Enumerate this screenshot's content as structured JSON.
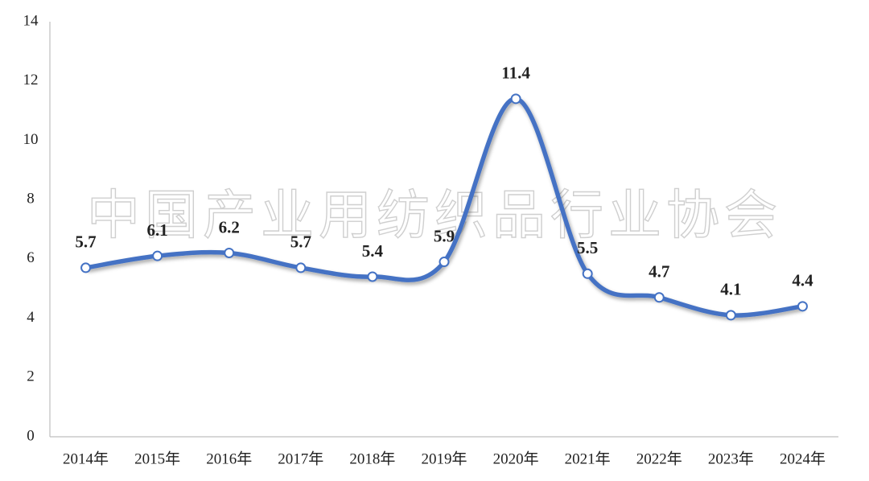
{
  "chart_data": {
    "type": "line",
    "watermark": "中国产业用纺织品行业协会",
    "categories": [
      "2014年",
      "2015年",
      "2016年",
      "2017年",
      "2018年",
      "2019年",
      "2020年",
      "2021年",
      "2022年",
      "2023年",
      "2024年"
    ],
    "values": [
      5.7,
      6.1,
      6.2,
      5.7,
      5.4,
      5.9,
      11.4,
      5.5,
      4.7,
      4.1,
      4.4
    ],
    "color": "#4472c4",
    "ylim": [
      0,
      14
    ],
    "yticks": [
      0,
      2,
      4,
      6,
      8,
      10,
      12,
      14
    ]
  }
}
